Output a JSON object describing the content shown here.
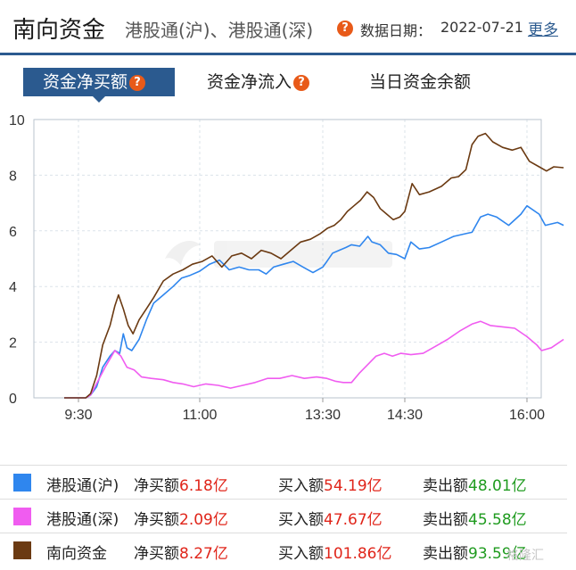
{
  "header": {
    "title": "南向资金",
    "subtitle": "港股通(沪)、港股通(深)",
    "date_label": "数据日期：",
    "date": "2022-07-21",
    "more": "更多"
  },
  "tabs": [
    {
      "label": "资金净买额",
      "active": true
    },
    {
      "label": "资金净流入",
      "active": false
    },
    {
      "label": "当日资金余额",
      "active": false
    }
  ],
  "colors": {
    "accent": "#2b5a8f",
    "sh": "#2f86ee",
    "sz": "#f05cf0",
    "total": "#6b3a12",
    "help": "#e85a19"
  },
  "chart_data": {
    "type": "line",
    "x_ticks": [
      "9:30",
      "11:00",
      "13:30",
      "14:30",
      "16:00"
    ],
    "ylim": [
      0,
      10
    ],
    "y_ticks": [
      "0",
      "2",
      "4",
      "6",
      "8",
      "10"
    ],
    "grid": true,
    "series": [
      {
        "name": "港股通(沪)",
        "color": "#2f86ee",
        "points": [
          [
            0,
            0
          ],
          [
            0.06,
            0
          ],
          [
            0.1,
            0.1
          ],
          [
            0.15,
            0.4
          ],
          [
            0.2,
            1.1
          ],
          [
            0.26,
            1.5
          ],
          [
            0.3,
            1.7
          ],
          [
            0.34,
            1.6
          ],
          [
            0.37,
            2.3
          ],
          [
            0.4,
            1.8
          ],
          [
            0.44,
            1.7
          ],
          [
            0.5,
            2.1
          ],
          [
            0.56,
            2.8
          ],
          [
            0.62,
            3.4
          ],
          [
            0.7,
            3.7
          ],
          [
            0.78,
            4.0
          ],
          [
            0.85,
            4.3
          ],
          [
            0.92,
            4.4
          ],
          [
            1.0,
            4.55
          ],
          [
            1.08,
            4.8
          ],
          [
            1.16,
            4.95
          ],
          [
            1.24,
            4.6
          ],
          [
            1.32,
            4.7
          ],
          [
            1.4,
            4.6
          ],
          [
            1.48,
            4.6
          ],
          [
            1.54,
            4.45
          ],
          [
            1.6,
            4.7
          ],
          [
            1.68,
            4.8
          ],
          [
            1.76,
            4.9
          ],
          [
            1.84,
            4.7
          ],
          [
            1.92,
            4.5
          ],
          [
            2.0,
            4.7
          ],
          [
            2.05,
            4.9
          ],
          [
            2.12,
            5.2
          ],
          [
            2.2,
            5.3
          ],
          [
            2.28,
            5.4
          ],
          [
            2.35,
            5.5
          ],
          [
            2.45,
            5.45
          ],
          [
            2.55,
            5.8
          ],
          [
            2.6,
            5.6
          ],
          [
            2.7,
            5.5
          ],
          [
            2.8,
            5.2
          ],
          [
            2.9,
            5.15
          ],
          [
            3.0,
            5.0
          ],
          [
            3.05,
            5.6
          ],
          [
            3.12,
            5.35
          ],
          [
            3.2,
            5.4
          ],
          [
            3.3,
            5.6
          ],
          [
            3.4,
            5.8
          ],
          [
            3.5,
            5.9
          ],
          [
            3.55,
            5.95
          ],
          [
            3.62,
            6.5
          ],
          [
            3.68,
            6.6
          ],
          [
            3.75,
            6.5
          ],
          [
            3.85,
            6.2
          ],
          [
            3.95,
            6.6
          ],
          [
            4.0,
            6.9
          ],
          [
            4.1,
            6.6
          ],
          [
            4.15,
            6.2
          ],
          [
            4.25,
            6.3
          ],
          [
            4.3,
            6.2
          ]
        ]
      },
      {
        "name": "港股通(深)",
        "color": "#f05cf0",
        "points": [
          [
            0,
            0
          ],
          [
            0.06,
            0
          ],
          [
            0.1,
            0.1
          ],
          [
            0.16,
            0.6
          ],
          [
            0.22,
            1.1
          ],
          [
            0.3,
            1.7
          ],
          [
            0.35,
            1.5
          ],
          [
            0.4,
            1.1
          ],
          [
            0.46,
            1.0
          ],
          [
            0.52,
            0.75
          ],
          [
            0.6,
            0.7
          ],
          [
            0.7,
            0.65
          ],
          [
            0.78,
            0.55
          ],
          [
            0.86,
            0.5
          ],
          [
            0.95,
            0.4
          ],
          [
            1.05,
            0.5
          ],
          [
            1.15,
            0.45
          ],
          [
            1.25,
            0.35
          ],
          [
            1.35,
            0.45
          ],
          [
            1.45,
            0.55
          ],
          [
            1.55,
            0.7
          ],
          [
            1.65,
            0.7
          ],
          [
            1.75,
            0.8
          ],
          [
            1.85,
            0.7
          ],
          [
            1.95,
            0.75
          ],
          [
            2.05,
            0.7
          ],
          [
            2.15,
            0.6
          ],
          [
            2.25,
            0.55
          ],
          [
            2.35,
            0.55
          ],
          [
            2.45,
            0.9
          ],
          [
            2.55,
            1.2
          ],
          [
            2.65,
            1.5
          ],
          [
            2.75,
            1.6
          ],
          [
            2.85,
            1.5
          ],
          [
            2.95,
            1.6
          ],
          [
            3.05,
            1.55
          ],
          [
            3.15,
            1.6
          ],
          [
            3.25,
            1.85
          ],
          [
            3.35,
            2.1
          ],
          [
            3.45,
            2.4
          ],
          [
            3.55,
            2.65
          ],
          [
            3.62,
            2.75
          ],
          [
            3.7,
            2.6
          ],
          [
            3.8,
            2.55
          ],
          [
            3.9,
            2.5
          ],
          [
            4.0,
            2.2
          ],
          [
            4.08,
            1.9
          ],
          [
            4.12,
            1.7
          ],
          [
            4.2,
            1.8
          ],
          [
            4.3,
            2.1
          ]
        ]
      },
      {
        "name": "南向资金",
        "color": "#6b3a12",
        "points": [
          [
            0,
            0
          ],
          [
            0.06,
            0
          ],
          [
            0.1,
            0.15
          ],
          [
            0.15,
            0.8
          ],
          [
            0.2,
            1.9
          ],
          [
            0.26,
            2.6
          ],
          [
            0.3,
            3.3
          ],
          [
            0.33,
            3.7
          ],
          [
            0.37,
            3.2
          ],
          [
            0.41,
            2.6
          ],
          [
            0.45,
            2.3
          ],
          [
            0.5,
            2.8
          ],
          [
            0.56,
            3.2
          ],
          [
            0.62,
            3.6
          ],
          [
            0.7,
            4.2
          ],
          [
            0.78,
            4.45
          ],
          [
            0.86,
            4.6
          ],
          [
            0.94,
            4.8
          ],
          [
            1.02,
            4.9
          ],
          [
            1.1,
            5.1
          ],
          [
            1.18,
            4.7
          ],
          [
            1.26,
            5.1
          ],
          [
            1.34,
            5.2
          ],
          [
            1.42,
            5.0
          ],
          [
            1.5,
            5.3
          ],
          [
            1.58,
            5.2
          ],
          [
            1.66,
            5.0
          ],
          [
            1.74,
            5.3
          ],
          [
            1.82,
            5.6
          ],
          [
            1.9,
            5.7
          ],
          [
            1.98,
            5.9
          ],
          [
            2.06,
            6.1
          ],
          [
            2.14,
            6.2
          ],
          [
            2.22,
            6.4
          ],
          [
            2.3,
            6.7
          ],
          [
            2.38,
            6.9
          ],
          [
            2.46,
            7.1
          ],
          [
            2.54,
            7.4
          ],
          [
            2.62,
            7.2
          ],
          [
            2.7,
            6.8
          ],
          [
            2.78,
            6.6
          ],
          [
            2.86,
            6.4
          ],
          [
            2.94,
            6.5
          ],
          [
            3.0,
            6.7
          ],
          [
            3.06,
            7.7
          ],
          [
            3.12,
            7.3
          ],
          [
            3.2,
            7.4
          ],
          [
            3.3,
            7.6
          ],
          [
            3.38,
            7.9
          ],
          [
            3.44,
            7.95
          ],
          [
            3.5,
            8.2
          ],
          [
            3.55,
            9.1
          ],
          [
            3.6,
            9.4
          ],
          [
            3.66,
            9.5
          ],
          [
            3.72,
            9.2
          ],
          [
            3.8,
            9.0
          ],
          [
            3.88,
            8.9
          ],
          [
            3.95,
            9.0
          ],
          [
            4.02,
            8.5
          ],
          [
            4.1,
            8.3
          ],
          [
            4.16,
            8.15
          ],
          [
            4.22,
            8.3
          ],
          [
            4.3,
            8.27
          ]
        ]
      }
    ]
  },
  "legend": [
    {
      "name": "港股通(沪)",
      "color": "#2f86ee",
      "net_label": "净买额",
      "net": "6.18亿",
      "buy_label": "买入额",
      "buy": "54.19亿",
      "sell_label": "卖出额",
      "sell": "48.01亿"
    },
    {
      "name": "港股通(深)",
      "color": "#f05cf0",
      "net_label": "净买额",
      "net": "2.09亿",
      "buy_label": "买入额",
      "buy": "47.67亿",
      "sell_label": "卖出额",
      "sell": "45.58亿"
    },
    {
      "name": "南向资金",
      "color": "#6b3a12",
      "net_label": "净买额",
      "net": "8.27亿",
      "buy_label": "买入额",
      "buy": "101.86亿",
      "sell_label": "卖出额",
      "sell": "93.59亿"
    }
  ],
  "watermark": "格隆汇"
}
